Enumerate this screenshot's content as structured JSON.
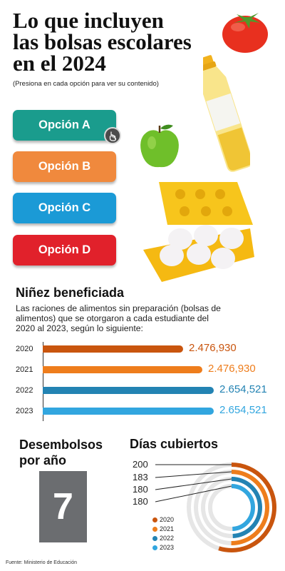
{
  "header": {
    "title_lines": [
      "Lo que incluyen",
      "las bolsas escolares",
      "en el 2024"
    ],
    "subtitle": "(Presiona en cada opción para ver su contenido)"
  },
  "options": [
    {
      "label": "Opción A",
      "color": "#1a9c8d"
    },
    {
      "label": "Opción B",
      "color": "#f0893d"
    },
    {
      "label": "Opción C",
      "color": "#1b9ad6"
    },
    {
      "label": "Opción D",
      "color": "#e1212b"
    }
  ],
  "beneficiaries": {
    "heading": "Niñez beneficiada",
    "description": "Las raciones de alimentos sin preparación (bolsas de alimentos) que se otorgaron a cada estudiante del 2020 al 2023, según lo siguiente:"
  },
  "chart_data": [
    {
      "type": "bar",
      "orientation": "horizontal",
      "categories": [
        "2020",
        "2021",
        "2022",
        "2023"
      ],
      "values": [
        2476930,
        2476930,
        2654521,
        2654521
      ],
      "labels": [
        "2.476,930",
        "2.476,930",
        "2.654,521",
        "2.654,521"
      ],
      "colors": [
        "#c9550e",
        "#ee7d1c",
        "#2383b3",
        "#32a6df"
      ],
      "label_colors": [
        "#c9550e",
        "#ee7d1c",
        "#2383b3",
        "#32a6df"
      ]
    },
    {
      "type": "pie",
      "style": "concentric-rings",
      "heading": "Días cubiertos",
      "categories": [
        "2020",
        "2021",
        "2022",
        "2023"
      ],
      "values": [
        200,
        183,
        180,
        180
      ],
      "max": 365,
      "colors": [
        "#c9550e",
        "#ee7d1c",
        "#2383b3",
        "#32a6df"
      ],
      "track_color": "#e6e6e6"
    }
  ],
  "disbursements": {
    "heading_lines": [
      "Desembolsos",
      "por año"
    ],
    "value": "7"
  },
  "days_labels": [
    "200",
    "183",
    "180",
    "180"
  ],
  "source": "Fuente: Ministerio de Educación",
  "icons": {
    "cursor": "hand-pointer-icon"
  }
}
